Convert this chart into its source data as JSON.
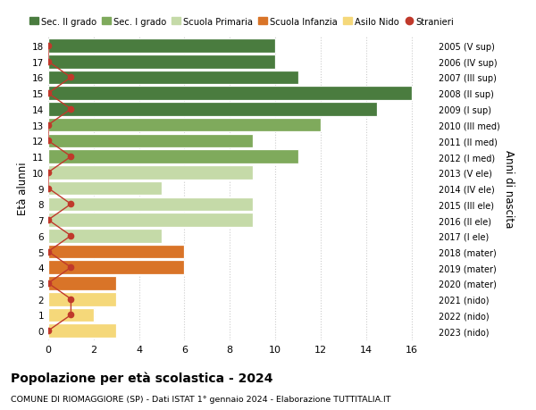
{
  "ages": [
    18,
    17,
    16,
    15,
    14,
    13,
    12,
    11,
    10,
    9,
    8,
    7,
    6,
    5,
    4,
    3,
    2,
    1,
    0
  ],
  "years": [
    "2005 (V sup)",
    "2006 (IV sup)",
    "2007 (III sup)",
    "2008 (II sup)",
    "2009 (I sup)",
    "2010 (III med)",
    "2011 (II med)",
    "2012 (I med)",
    "2013 (V ele)",
    "2014 (IV ele)",
    "2015 (III ele)",
    "2016 (II ele)",
    "2017 (I ele)",
    "2018 (mater)",
    "2019 (mater)",
    "2020 (mater)",
    "2021 (nido)",
    "2022 (nido)",
    "2023 (nido)"
  ],
  "values": [
    10,
    10,
    11,
    16,
    14.5,
    12,
    9,
    11,
    9,
    5,
    9,
    9,
    5,
    6,
    6,
    3,
    3,
    2,
    3
  ],
  "bar_colors": [
    "#4a7c3f",
    "#4a7c3f",
    "#4a7c3f",
    "#4a7c3f",
    "#4a7c3f",
    "#7faa5c",
    "#7faa5c",
    "#7faa5c",
    "#c5daa8",
    "#c5daa8",
    "#c5daa8",
    "#c5daa8",
    "#c5daa8",
    "#d97428",
    "#d97428",
    "#d97428",
    "#f5d87a",
    "#f5d87a",
    "#f5d87a"
  ],
  "stranieri_x": [
    0,
    0,
    1,
    0,
    1,
    0,
    0,
    1,
    0,
    0,
    1,
    0,
    1,
    0,
    1,
    0,
    1,
    1,
    0
  ],
  "legend_labels": [
    "Sec. II grado",
    "Sec. I grado",
    "Scuola Primaria",
    "Scuola Infanzia",
    "Asilo Nido",
    "Stranieri"
  ],
  "legend_colors": [
    "#4a7c3f",
    "#7faa5c",
    "#c5daa8",
    "#d97428",
    "#f5d87a",
    "#c0392b"
  ],
  "ylabel_left": "Età alunni",
  "ylabel_right": "Anni di nascita",
  "title": "Popolazione per età scolastica - 2024",
  "subtitle": "COMUNE DI RIOMAGGIORE (SP) - Dati ISTAT 1° gennaio 2024 - Elaborazione TUTTITALIA.IT",
  "xlim": [
    0,
    17
  ],
  "xticks": [
    0,
    2,
    4,
    6,
    8,
    10,
    12,
    14,
    16
  ],
  "background": "#ffffff",
  "grid_color": "#cccccc",
  "stranieri_color": "#c0392b"
}
